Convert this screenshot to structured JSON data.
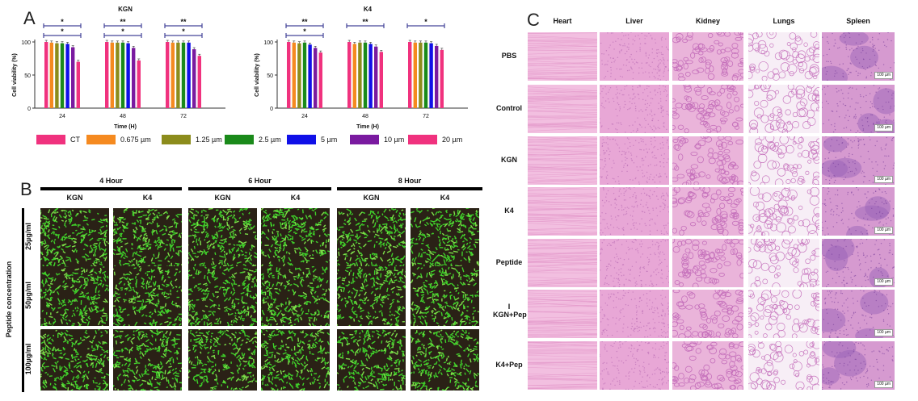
{
  "panels": {
    "a": "A",
    "b": "B",
    "c": "C"
  },
  "chart_data": [
    {
      "type": "bar",
      "title": "KGN",
      "xlabel": "Time (H)",
      "ylabel": "Cell viability (%)",
      "ylim": [
        0,
        100
      ],
      "yticks": [
        "0",
        "50",
        "100"
      ],
      "categories": [
        "24",
        "48",
        "72"
      ],
      "series": [
        {
          "name": "CT",
          "color": "#f0327e",
          "values": [
            100,
            100,
            100
          ]
        },
        {
          "name": "0.675 µm",
          "color": "#f58a20",
          "values": [
            99,
            99,
            99
          ]
        },
        {
          "name": "1.25 µm",
          "color": "#8c8c1c",
          "values": [
            98,
            99,
            99
          ]
        },
        {
          "name": "2.5 µm",
          "color": "#1a8a1a",
          "values": [
            98,
            99,
            99
          ]
        },
        {
          "name": "5 µm",
          "color": "#1010e8",
          "values": [
            97,
            98,
            99
          ]
        },
        {
          "name": "10 µm",
          "color": "#7a1aa0",
          "values": [
            92,
            91,
            89
          ]
        },
        {
          "name": "20 µm",
          "color": "#f0327e",
          "values": [
            70,
            72,
            79
          ]
        }
      ],
      "significance": [
        {
          "group": "24",
          "marks": [
            "*",
            "*"
          ]
        },
        {
          "group": "48",
          "marks": [
            "**",
            "*"
          ]
        },
        {
          "group": "72",
          "marks": [
            "**",
            "*"
          ]
        }
      ]
    },
    {
      "type": "bar",
      "title": "K4",
      "xlabel": "Time (H)",
      "ylabel": "Cell viability (%)",
      "ylim": [
        0,
        100
      ],
      "yticks": [
        "0",
        "50",
        "100"
      ],
      "categories": [
        "24",
        "48",
        "72"
      ],
      "series": [
        {
          "name": "CT",
          "color": "#f0327e",
          "values": [
            100,
            100,
            100
          ]
        },
        {
          "name": "0.675 µm",
          "color": "#f58a20",
          "values": [
            99,
            97,
            99
          ]
        },
        {
          "name": "1.25 µm",
          "color": "#8c8c1c",
          "values": [
            98,
            99,
            99
          ]
        },
        {
          "name": "2.5 µm",
          "color": "#1a8a1a",
          "values": [
            99,
            99,
            99
          ]
        },
        {
          "name": "5 µm",
          "color": "#1010e8",
          "values": [
            96,
            97,
            98
          ]
        },
        {
          "name": "10 µm",
          "color": "#7a1aa0",
          "values": [
            91,
            93,
            94
          ]
        },
        {
          "name": "20 µm",
          "color": "#f0327e",
          "values": [
            84,
            85,
            88
          ]
        }
      ],
      "significance": [
        {
          "group": "24",
          "marks": [
            "**",
            "*"
          ]
        },
        {
          "group": "48",
          "marks": [
            "**"
          ]
        },
        {
          "group": "72",
          "marks": [
            "*"
          ]
        }
      ]
    }
  ],
  "legend": [
    "CT",
    "0.675 µm",
    "1.25 µm",
    "2.5 µm",
    "5 µm",
    "10 µm",
    "20 µm"
  ],
  "legend_colors": [
    "#f0327e",
    "#f58a20",
    "#8c8c1c",
    "#1a8a1a",
    "#1010e8",
    "#7a1aa0",
    "#f0327e"
  ],
  "panel_b": {
    "times": [
      "4 Hour",
      "6 Hour",
      "8 Hour"
    ],
    "peptides": [
      "KGN",
      "K4",
      "KGN",
      "K4",
      "KGN",
      "K4"
    ],
    "concentrations": [
      "25µg/ml",
      "50µg/ml",
      "100µg/ml"
    ],
    "axis_label": "Peptide concentration"
  },
  "panel_c": {
    "columns": [
      "Heart",
      "Liver",
      "Kidney",
      "Lungs",
      "Spleen"
    ],
    "rows": [
      "PBS",
      "Control",
      "KGN",
      "K4",
      "Peptide",
      "KGN+Pep",
      "K4+Pep"
    ],
    "scale_bar": "100 µm",
    "kgnpep_prefix": "I"
  }
}
